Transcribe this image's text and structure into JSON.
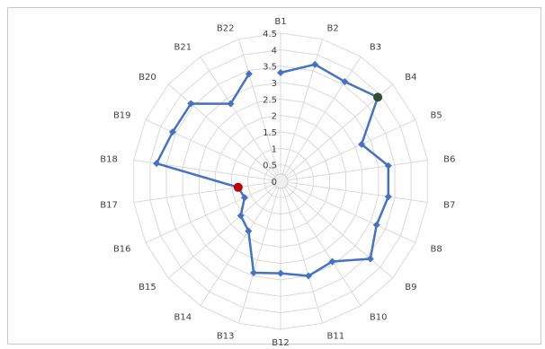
{
  "chart_data": {
    "type": "radar",
    "categories": [
      "B1",
      "B2",
      "B3",
      "B4",
      "B5",
      "B6",
      "B7",
      "B8",
      "B9",
      "B10",
      "B11",
      "B12",
      "B13",
      "B14",
      "B15",
      "B16",
      "B17",
      "B18",
      "B19",
      "B20",
      "B21",
      "B22"
    ],
    "rlim": [
      0,
      4.5
    ],
    "ticks": [
      "0",
      "0.5",
      "1",
      "1.5",
      "2",
      "2.5",
      "3",
      "3.5",
      "4",
      "4.5"
    ],
    "series": [
      {
        "values": [
          3.3,
          3.7,
          3.6,
          3.9,
          2.7,
          3.3,
          3.3,
          3.2,
          3.6,
          2.9,
          3.0,
          2.8,
          2.9,
          1.8,
          1.6,
          1.2,
          1.3,
          3.8,
          3.6,
          3.6,
          2.8,
          3.4
        ],
        "color": "#4472c4"
      }
    ],
    "highlight_points": [
      {
        "category": "B4",
        "color": "#2f4f2f"
      },
      {
        "category": "B17",
        "color": "#c00000"
      }
    ],
    "grid": true
  }
}
